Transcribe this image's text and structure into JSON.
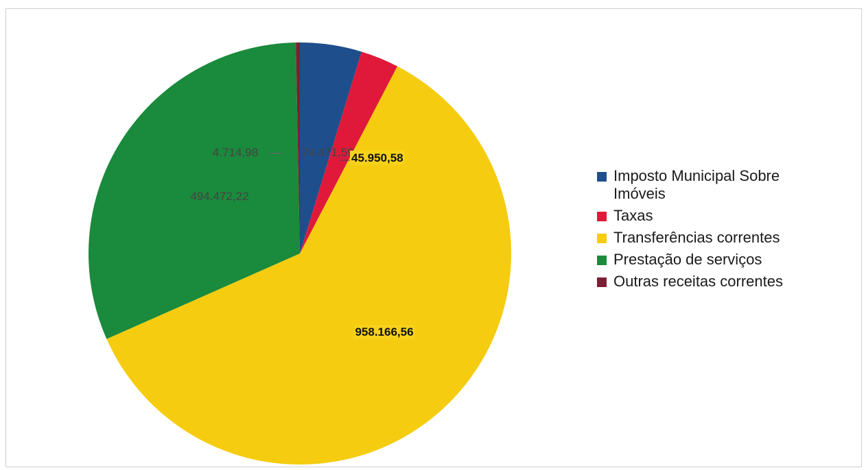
{
  "chart_data": {
    "type": "pie",
    "title": "",
    "slices": [
      {
        "name": "Imposto Municipal Sobre Imóveis",
        "value": 74471.59,
        "label": "74.471,59",
        "color": "#1f4e8c"
      },
      {
        "name": "Taxas",
        "value": 45950.58,
        "label": "45.950,58",
        "color": "#e0193a"
      },
      {
        "name": "Transferências correntes",
        "value": 958166.56,
        "label": "958.166,56",
        "color": "#f5cc0f"
      },
      {
        "name": "Prestação de serviços",
        "value": 494472.22,
        "label": "494.472,22",
        "color": "#1a8a3c"
      },
      {
        "name": "Outras receitas correntes",
        "value": 4714.98,
        "label": "4.714,98",
        "color": "#7a1f34"
      }
    ],
    "legend_position": "right"
  }
}
